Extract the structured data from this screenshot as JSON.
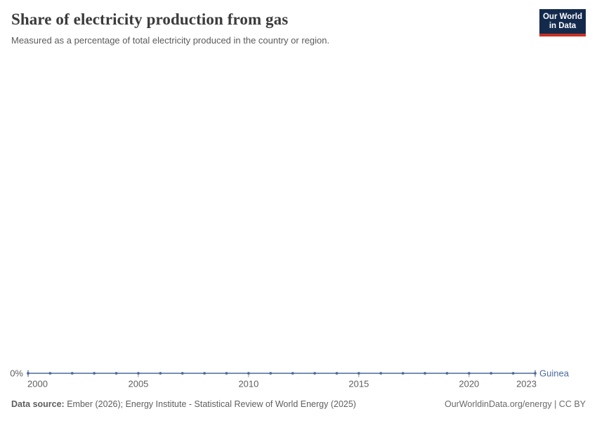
{
  "header": {
    "title": "Share of electricity production from gas",
    "subtitle": "Measured as a percentage of total electricity produced in the country or region.",
    "logo_line1": "Our World",
    "logo_line2": "in Data"
  },
  "chart_data": {
    "type": "line",
    "title": "Share of electricity production from gas",
    "xlabel": "",
    "ylabel": "",
    "x": [
      2000,
      2001,
      2002,
      2003,
      2004,
      2005,
      2006,
      2007,
      2008,
      2009,
      2010,
      2011,
      2012,
      2013,
      2014,
      2015,
      2016,
      2017,
      2018,
      2019,
      2020,
      2021,
      2022,
      2023
    ],
    "series": [
      {
        "name": "Guinea",
        "color": "#4C6A9C",
        "values": [
          0,
          0,
          0,
          0,
          0,
          0,
          0,
          0,
          0,
          0,
          0,
          0,
          0,
          0,
          0,
          0,
          0,
          0,
          0,
          0,
          0,
          0,
          0,
          0
        ]
      }
    ],
    "x_ticks": [
      2000,
      2005,
      2010,
      2015,
      2020,
      2023
    ],
    "y_tick_label": "0%",
    "xlim": [
      2000,
      2023
    ],
    "ylim_shown_value": 0,
    "grid": false,
    "legend_position": "end-of-line-label",
    "marker": "dot"
  },
  "footer": {
    "source_label": "Data source:",
    "source_text": " Ember (2026); Energy Institute - Statistical Review of World Energy (2025)",
    "attribution": "OurWorldinData.org/energy | CC BY"
  },
  "colors": {
    "series": "#4C6A9C",
    "tick_label": "#5f5f5f",
    "axis_tick": "#999999",
    "title": "#3b3b3b",
    "subtitle": "#5b5b5b",
    "logo_bg": "#132a4d",
    "logo_bar": "#cb3024",
    "background": "#ffffff"
  }
}
